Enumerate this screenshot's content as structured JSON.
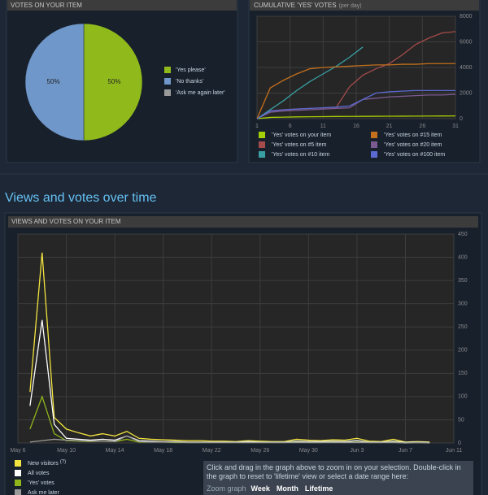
{
  "chart_data": [
    {
      "type": "pie",
      "title": "VOTES ON YOUR ITEM",
      "categories": [
        "'Yes please'",
        "'No thanks'",
        "'Ask me again later'"
      ],
      "values": [
        50,
        50,
        0
      ],
      "value_labels": [
        "50%",
        "50%",
        null
      ],
      "colors": [
        "#90ba1b",
        "#7097c9",
        "#9a9a9a"
      ]
    },
    {
      "type": "line",
      "title": "CUMULATIVE 'YES' VOTES",
      "subtitle": "(per day)",
      "x": [
        1,
        3,
        5,
        7,
        9,
        11,
        13,
        15,
        17,
        19,
        21,
        23,
        25,
        27,
        29,
        31
      ],
      "xlim": [
        1,
        31
      ],
      "xticks": [
        1,
        6,
        11,
        16,
        21,
        26,
        31
      ],
      "ylim": [
        0,
        8000
      ],
      "yticks": [
        0,
        2000,
        4000,
        6000,
        8000
      ],
      "grid": true,
      "series": [
        {
          "name": "'Yes' votes on your item",
          "color": "#a4d007",
          "values": [
            0,
            100,
            120,
            140,
            150,
            160,
            170,
            175,
            180,
            185,
            190,
            195,
            200,
            205,
            210,
            215
          ]
        },
        {
          "name": "'Yes' votes on #5 item",
          "color": "#a54b4b",
          "values": [
            0,
            600,
            700,
            750,
            800,
            850,
            900,
            2500,
            3400,
            3900,
            4300,
            5000,
            5800,
            6300,
            6700,
            6800
          ]
        },
        {
          "name": "'Yes' votes on #10 item",
          "color": "#3a9fa3",
          "values": [
            0,
            700,
            1400,
            2200,
            2900,
            3500,
            4100,
            4800,
            5600,
            null,
            null,
            null,
            null,
            null,
            null,
            null
          ]
        },
        {
          "name": "'Yes' votes on #15 item",
          "color": "#c4701c",
          "values": [
            0,
            2400,
            3000,
            3500,
            3900,
            4000,
            4050,
            4100,
            4150,
            4200,
            4200,
            4250,
            4250,
            4300,
            4300,
            4300
          ]
        },
        {
          "name": "'Yes' votes on #20 item",
          "color": "#7b5a90",
          "values": [
            0,
            500,
            600,
            650,
            700,
            750,
            800,
            850,
            1500,
            1600,
            1700,
            1750,
            1800,
            1850,
            1850,
            1900
          ]
        },
        {
          "name": "'Yes' votes on #100 item",
          "color": "#5a6ad0",
          "values": [
            0,
            600,
            700,
            750,
            800,
            850,
            900,
            1000,
            1500,
            2000,
            2100,
            2150,
            2200,
            2200,
            2200,
            2200
          ]
        }
      ]
    },
    {
      "type": "line",
      "title": "VIEWS AND VOTES ON YOUR ITEM",
      "categories": [
        "May 6",
        null,
        null,
        null,
        "May 10",
        null,
        null,
        null,
        "May 14",
        null,
        null,
        null,
        "May 18",
        null,
        null,
        null,
        "May 22",
        null,
        null,
        null,
        "May 26",
        null,
        null,
        null,
        "May 30",
        null,
        null,
        null,
        "Jun 3",
        null,
        null,
        null,
        "Jun 7",
        null,
        null,
        null,
        "Jun 11"
      ],
      "ylim": [
        0,
        450
      ],
      "yticks": [
        0,
        50,
        100,
        150,
        200,
        250,
        300,
        350,
        400,
        450
      ],
      "grid": true,
      "series": [
        {
          "name": "New visitors",
          "color": "#f3e43f",
          "values": [
            null,
            110,
            410,
            55,
            30,
            22,
            15,
            20,
            15,
            25,
            10,
            8,
            7,
            6,
            5,
            5,
            4,
            4,
            3,
            5,
            4,
            3,
            3,
            8,
            6,
            5,
            7,
            6,
            10,
            4,
            3,
            8,
            2,
            3,
            2,
            null,
            null
          ]
        },
        {
          "name": "All votes",
          "color": "#ffffff",
          "values": [
            null,
            80,
            265,
            40,
            10,
            8,
            6,
            8,
            6,
            15,
            5,
            4,
            3,
            3,
            2,
            2,
            2,
            2,
            2,
            3,
            2,
            2,
            2,
            4,
            3,
            3,
            4,
            3,
            5,
            2,
            2,
            4,
            1,
            2,
            1,
            null,
            null
          ]
        },
        {
          "name": "'Yes' votes",
          "color": "#8fb51a",
          "values": [
            null,
            30,
            100,
            20,
            5,
            4,
            3,
            4,
            3,
            8,
            2,
            2,
            2,
            1,
            1,
            1,
            1,
            1,
            1,
            1,
            1,
            1,
            1,
            2,
            1,
            1,
            2,
            1,
            2,
            1,
            1,
            2,
            0,
            1,
            0,
            null,
            null
          ]
        },
        {
          "name": "Ask me later",
          "color": "#9a9a9a",
          "values": [
            null,
            2,
            5,
            8,
            6,
            5,
            4,
            4,
            3,
            15,
            3,
            2,
            2,
            2,
            1,
            1,
            1,
            1,
            1,
            1,
            1,
            1,
            1,
            1,
            1,
            1,
            1,
            1,
            1,
            1,
            1,
            1,
            0,
            1,
            0,
            null,
            null
          ]
        }
      ],
      "legend_note": "(?)"
    }
  ],
  "heading": "Views and votes over time",
  "zoom_help": {
    "text": "Click and drag in the graph above to zoom in on your selection. Double-click in the graph to reset to 'lifetime' view or select a date range here:",
    "label": "Zoom graph",
    "options": [
      "Week",
      "Month",
      "Lifetime"
    ]
  }
}
